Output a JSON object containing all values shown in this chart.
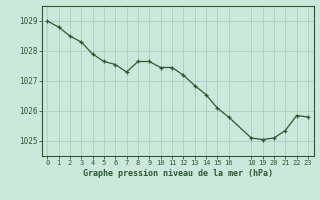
{
  "x": [
    0,
    1,
    2,
    3,
    4,
    5,
    6,
    7,
    8,
    9,
    10,
    11,
    12,
    13,
    14,
    15,
    16,
    18,
    19,
    20,
    21,
    22,
    23
  ],
  "y": [
    1029.0,
    1028.8,
    1028.5,
    1028.3,
    1027.9,
    1027.65,
    1027.55,
    1027.3,
    1027.65,
    1027.65,
    1027.45,
    1027.45,
    1027.2,
    1026.85,
    1026.55,
    1026.1,
    1025.8,
    1025.1,
    1025.05,
    1025.1,
    1025.35,
    1025.85,
    1025.8
  ],
  "ylim": [
    1024.5,
    1029.5
  ],
  "yticks": [
    1025,
    1026,
    1027,
    1028,
    1029
  ],
  "xlim": [
    -0.5,
    23.5
  ],
  "xticks": [
    0,
    1,
    2,
    3,
    4,
    5,
    6,
    7,
    8,
    9,
    10,
    11,
    12,
    13,
    14,
    15,
    16,
    18,
    19,
    20,
    21,
    22,
    23
  ],
  "line_color": "#2d5a2d",
  "marker_color": "#2d5a2d",
  "bg_color": "#cce8dc",
  "grid_color": "#aacfbe",
  "axes_color": "#2d5a2d",
  "xlabel": "Graphe pression niveau de la mer (hPa)",
  "xlabel_color": "#2d5a2d",
  "tick_label_color": "#2d5a2d"
}
